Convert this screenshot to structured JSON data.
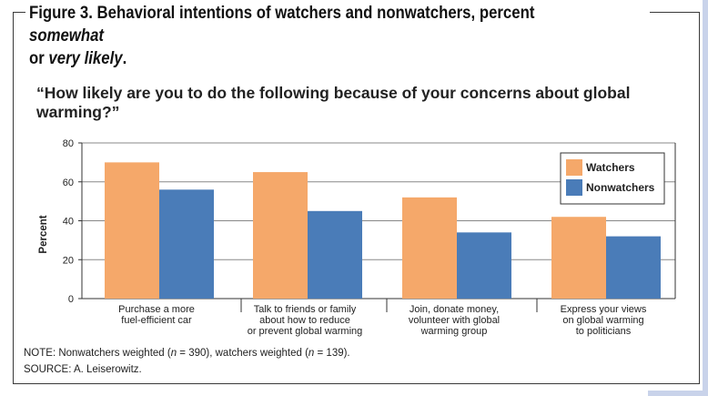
{
  "figure": {
    "label": "Figure 3.",
    "title_main": " Behavioral intentions of watchers and nonwatchers, percent ",
    "title_em1": "somewhat",
    "title_line2_pre": "or ",
    "title_em2": "very likely",
    "title_line2_post": "."
  },
  "notes": {
    "note_prefix": "NOTE: Nonwatchers weighted (",
    "n": "n",
    "note_mid": " = 390), watchers weighted (",
    "note_suffix": " = 139).",
    "source": "SOURCE:  A. Leiserowitz."
  },
  "colors": {
    "watchers": "#f5a86a",
    "nonwatchers": "#4a7cb8",
    "axis": "#333333"
  },
  "chart_data": {
    "type": "bar",
    "title": "“How likely are you to do the following because of your concerns about global warming?”",
    "ylabel": "Percent",
    "xlabel": "",
    "ylim": [
      0,
      80
    ],
    "yticks": [
      0,
      20,
      40,
      60,
      80
    ],
    "grid": true,
    "legend_position": "top-right",
    "categories": [
      [
        "Purchase a more",
        "fuel-efficient car"
      ],
      [
        "Talk to friends or family",
        "about how to reduce",
        "or prevent global warming"
      ],
      [
        "Join, donate money,",
        "volunteer with global",
        "warming group"
      ],
      [
        "Express your views",
        "on global warming",
        "to politicians"
      ]
    ],
    "series": [
      {
        "name": "Watchers",
        "values": [
          70,
          65,
          52,
          42
        ]
      },
      {
        "name": "Nonwatchers",
        "values": [
          56,
          45,
          34,
          32
        ]
      }
    ]
  }
}
